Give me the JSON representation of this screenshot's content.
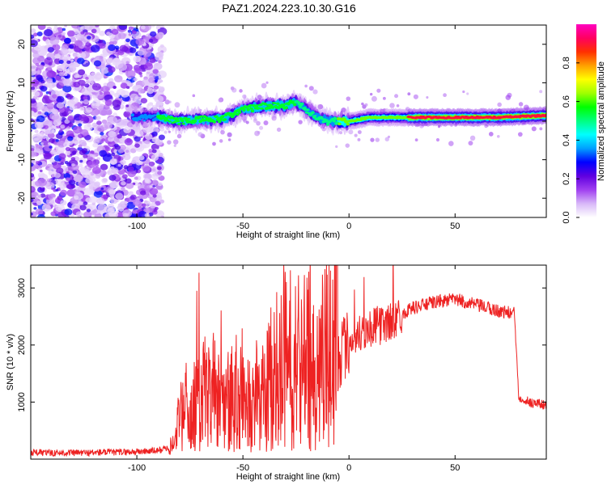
{
  "title": "PAZ1.2024.223.10.30.G16",
  "chart_data": [
    {
      "type": "heatmap",
      "xlabel": "Height of straight line (km)",
      "ylabel": "Frequency (Hz)",
      "xlim": [
        -150,
        93
      ],
      "ylim": [
        -25,
        25
      ],
      "xticks": [
        -100,
        -50,
        0,
        50
      ],
      "yticks": [
        20,
        10,
        0,
        -10,
        -20
      ],
      "colorbar": {
        "label": "Normalized spectral amplitude",
        "range": [
          0,
          1
        ],
        "ticks": [
          "0.0",
          "0.2",
          "0.4",
          "0.6",
          "0.8"
        ],
        "colors": [
          "#ffffff",
          "#d8b8f8",
          "#a040f0",
          "#6000e0",
          "#0000ff",
          "#00a0ff",
          "#00ffff",
          "#00ff80",
          "#00ff00",
          "#a0ff00",
          "#ffff00",
          "#ffa000",
          "#ff3000",
          "#ff0060",
          "#ff00c0"
        ]
      },
      "ridge": {
        "x": [
          -100,
          -90,
          -80,
          -70,
          -60,
          -50,
          -40,
          -30,
          -25,
          -20,
          -15,
          -10,
          -5,
          0,
          5,
          10,
          20,
          30,
          50,
          70,
          93
        ],
        "y": [
          1,
          1,
          0,
          0.5,
          0.5,
          3,
          4,
          4,
          5,
          3,
          1,
          0,
          0,
          0,
          0.5,
          1,
          1,
          1,
          1,
          1,
          1.5
        ]
      }
    },
    {
      "type": "line",
      "xlabel": "Height of straight line (km)",
      "ylabel": "SNR (10 * v/v)",
      "xlim": [
        -150,
        93
      ],
      "ylim": [
        0,
        3400
      ],
      "xticks": [
        -100,
        -50,
        0,
        50
      ],
      "yticks": [
        1000,
        2000,
        3000
      ],
      "series": [
        {
          "color": "#ee2222",
          "x": [
            -150,
            -140,
            -130,
            -120,
            -110,
            -100,
            -90,
            -85,
            -82,
            -80,
            -75,
            -70,
            -65,
            -60,
            -55,
            -50,
            -45,
            -40,
            -35,
            -30,
            -28,
            -25,
            -20,
            -15,
            -10,
            -7,
            -5,
            0,
            5,
            10,
            15,
            20,
            25,
            30,
            40,
            50,
            60,
            70,
            78,
            80,
            85,
            93
          ],
          "y": [
            120,
            110,
            110,
            115,
            120,
            130,
            150,
            200,
            300,
            450,
            600,
            650,
            700,
            650,
            700,
            650,
            600,
            800,
            900,
            1100,
            1500,
            1100,
            1200,
            1300,
            1400,
            1600,
            1800,
            2050,
            2200,
            2300,
            2350,
            2400,
            2550,
            2650,
            2750,
            2800,
            2700,
            2600,
            2550,
            1100,
            1000,
            950
          ]
        }
      ]
    }
  ]
}
